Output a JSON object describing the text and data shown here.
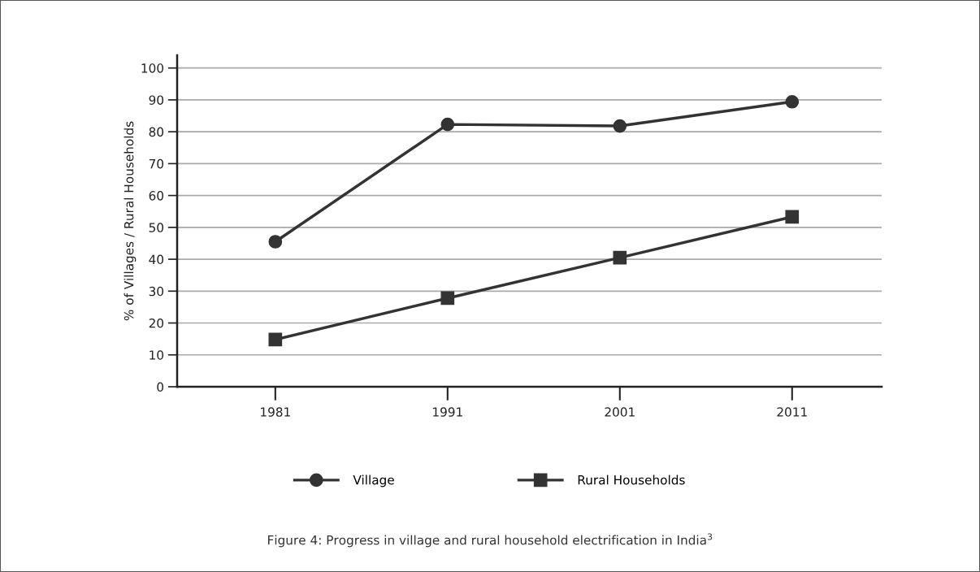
{
  "chart_data": {
    "type": "line",
    "ylabel": "% of Villages / Rural Households",
    "categories": [
      "1981",
      "1991",
      "2001",
      "2011"
    ],
    "series": [
      {
        "name": "Village",
        "color": "#333333",
        "values": [
          45.5,
          82.3,
          81.8,
          89.4
        ],
        "marker": "circle"
      },
      {
        "name": "Rural Households",
        "color": "#333333",
        "values": [
          14.8,
          27.8,
          40.5,
          53.3
        ],
        "marker": "square"
      }
    ],
    "ylim": [
      0,
      104
    ],
    "yticks": [
      0,
      10,
      20,
      30,
      40,
      50,
      60,
      70,
      80,
      90,
      100
    ],
    "grid": "y",
    "legend": "bottom",
    "line_style": "solid",
    "annotations": [
      "Figure 4: Progress in village and rural household electrification in India$^{3}$"
    ]
  }
}
